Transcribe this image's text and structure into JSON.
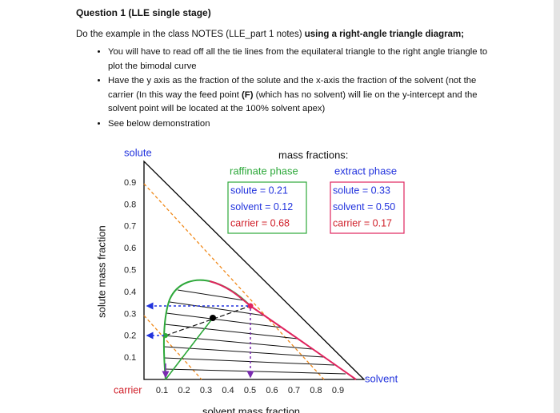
{
  "header": {
    "title": "Question 1 (LLE single stage)"
  },
  "intro": {
    "text": "Do the example in the class NOTES (LLE_part 1 notes) ",
    "bold": "using a right-angle triangle diagram;"
  },
  "bullets": [
    [
      "You will have to read off all the tie lines from the equilateral triangle to the right angle triangle to plot the bimodal curve"
    ],
    [
      "Have the y axis as the fraction of the solute and the x-axis the fraction of the solvent (not the carrier (In this way the feed point ",
      "(F)",
      " (which has no solvent) will lie on the y-intercept and the solvent point will be located at the 100% solvent apex)"
    ],
    [
      "See below demonstration"
    ]
  ],
  "diagram": {
    "apex_top": "solute",
    "apex_right": "solvent",
    "apex_left": "carrier",
    "y_axis_label": "solute mass fraction",
    "x_axis_label": "solvent mass fraction",
    "mass_fractions_title": "mass fractions:",
    "raffinate": {
      "title": "raffinate phase",
      "lines": [
        "solute = 0.21",
        "solvent = 0.12",
        "carrier = 0.68"
      ]
    },
    "extract": {
      "title": "extract phase",
      "lines": [
        "solute = 0.33",
        "solvent = 0.50",
        "carrier = 0.17"
      ]
    },
    "yticks": [
      "0.9",
      "0.8",
      "0.7",
      "0.6",
      "0.5",
      "0.4",
      "0.3",
      "0.2",
      "0.1"
    ],
    "xticks": [
      "0.1",
      "0.2",
      "0.3",
      "0.4",
      "0.5",
      "0.6",
      "0.7",
      "0.8",
      "0.9"
    ]
  }
}
